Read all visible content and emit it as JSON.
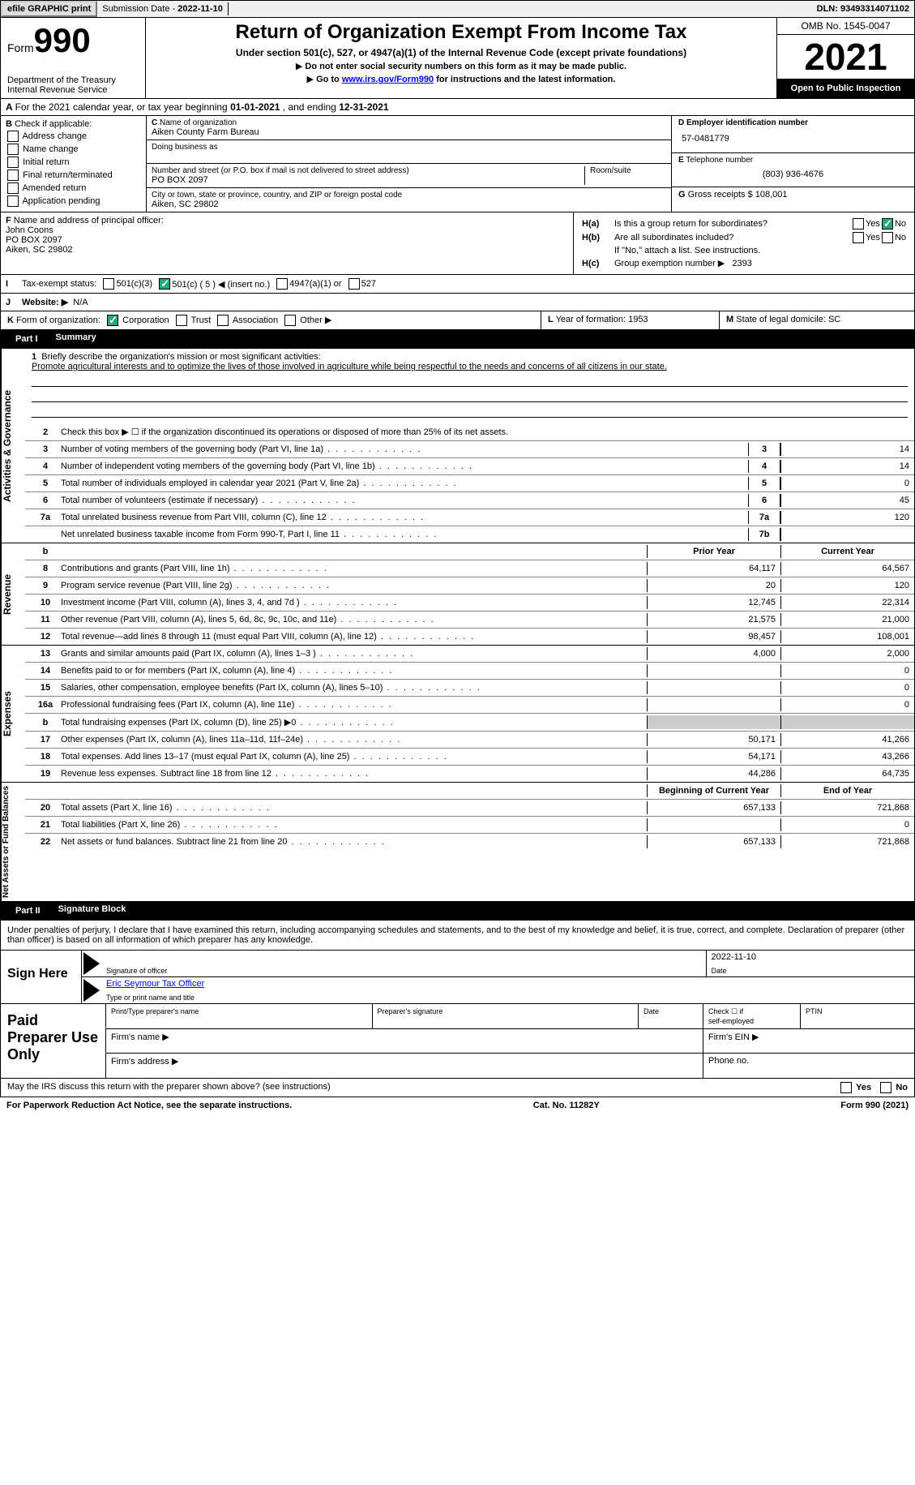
{
  "topbar": {
    "efile": "efile GRAPHIC print",
    "submission_label": "Submission Date - ",
    "submission_date": "2022-11-10",
    "dln_label": "DLN: ",
    "dln": "93493314071102"
  },
  "header": {
    "form_word": "Form",
    "form_num": "990",
    "dept": "Department of the Treasury\nInternal Revenue Service",
    "title": "Return of Organization Exempt From Income Tax",
    "subtitle": "Under section 501(c), 527, or 4947(a)(1) of the Internal Revenue Code (except private foundations)",
    "note1": "Do not enter social security numbers on this form as it may be made public.",
    "note2_a": "Go to ",
    "note2_link": "www.irs.gov/Form990",
    "note2_b": " for instructions and the latest information.",
    "omb": "OMB No. 1545-0047",
    "year": "2021",
    "inspect": "Open to Public Inspection"
  },
  "rowA": {
    "text_a": "For the 2021 calendar year, or tax year beginning ",
    "begin": "01-01-2021",
    "text_b": "   , and ending ",
    "end": "12-31-2021"
  },
  "B": {
    "hdr": "Check if applicable:",
    "opts": [
      "Address change",
      "Name change",
      "Initial return",
      "Final return/terminated",
      "Amended return",
      "Application pending"
    ]
  },
  "C": {
    "name_lbl": "Name of organization",
    "name": "Aiken County Farm Bureau",
    "dba_lbl": "Doing business as",
    "dba": "",
    "street_lbl": "Number and street (or P.O. box if mail is not delivered to street address)",
    "street": "PO BOX 2097",
    "suite_lbl": "Room/suite",
    "suite": "",
    "city_lbl": "City or town, state or province, country, and ZIP or foreign postal code",
    "city": "Aiken, SC  29802"
  },
  "D": {
    "ein_lbl": "Employer identification number",
    "ein": "57-0481779",
    "tel_lbl": "Telephone number",
    "tel": "(803) 936-4676",
    "gross_lbl": "Gross receipts $ ",
    "gross": "108,001"
  },
  "F": {
    "lbl": "Name and address of principal officer:",
    "name": "John Coons",
    "street": "PO BOX 2097",
    "city": "Aiken, SC  29802"
  },
  "H": {
    "a_lbl": "Is this a group return for subordinates?",
    "b_lbl": "Are all subordinates included?",
    "note": "If \"No,\" attach a list. See instructions.",
    "c_lbl": "Group exemption number ▶",
    "c_val": "2393",
    "yes": "Yes",
    "no": "No"
  },
  "I": {
    "lbl": "Tax-exempt status:",
    "opts": [
      "501(c)(3)",
      "501(c) ( 5 ) ◀ (insert no.)",
      "4947(a)(1) or",
      "527"
    ],
    "checked_idx": 1
  },
  "J": {
    "lbl": "Website: ▶",
    "val": "N/A"
  },
  "K": {
    "lbl": "Form of organization:",
    "opts": [
      "Corporation",
      "Trust",
      "Association",
      "Other ▶"
    ],
    "checked_idx": 0
  },
  "L": {
    "lbl": "Year of formation: ",
    "val": "1953"
  },
  "M": {
    "lbl": "State of legal domicile: ",
    "val": "SC"
  },
  "part1": {
    "num": "Part I",
    "title": "Summary"
  },
  "mission": {
    "q": "Briefly describe the organization's mission or most significant activities:",
    "text": "Promote agricultural interests and to optimize the lives of those involved in agriculture while being respectful to the needs and concerns of all citizens in our state."
  },
  "line2": "Check this box ▶ ☐ if the organization discontinued its operations or disposed of more than 25% of its net assets.",
  "group_lbls": {
    "ag": "Activities & Governance",
    "rev": "Revenue",
    "exp": "Expenses",
    "net": "Net Assets or Fund Balances"
  },
  "col_hdrs": {
    "prior": "Prior Year",
    "current": "Current Year",
    "begin": "Beginning of Current Year",
    "end": "End of Year"
  },
  "gov_lines": [
    {
      "n": "3",
      "t": "Number of voting members of the governing body (Part VI, line 1a)",
      "nb": "3",
      "v": "14"
    },
    {
      "n": "4",
      "t": "Number of independent voting members of the governing body (Part VI, line 1b)",
      "nb": "4",
      "v": "14"
    },
    {
      "n": "5",
      "t": "Total number of individuals employed in calendar year 2021 (Part V, line 2a)",
      "nb": "5",
      "v": "0"
    },
    {
      "n": "6",
      "t": "Total number of volunteers (estimate if necessary)",
      "nb": "6",
      "v": "45"
    },
    {
      "n": "7a",
      "t": "Total unrelated business revenue from Part VIII, column (C), line 12",
      "nb": "7a",
      "v": "120"
    },
    {
      "n": "",
      "t": "Net unrelated business taxable income from Form 990-T, Part I, line 11",
      "nb": "7b",
      "v": ""
    }
  ],
  "rev_lines": [
    {
      "n": "8",
      "t": "Contributions and grants (Part VIII, line 1h)",
      "p": "64,117",
      "c": "64,567"
    },
    {
      "n": "9",
      "t": "Program service revenue (Part VIII, line 2g)",
      "p": "20",
      "c": "120"
    },
    {
      "n": "10",
      "t": "Investment income (Part VIII, column (A), lines 3, 4, and 7d )",
      "p": "12,745",
      "c": "22,314"
    },
    {
      "n": "11",
      "t": "Other revenue (Part VIII, column (A), lines 5, 6d, 8c, 9c, 10c, and 11e)",
      "p": "21,575",
      "c": "21,000"
    },
    {
      "n": "12",
      "t": "Total revenue—add lines 8 through 11 (must equal Part VIII, column (A), line 12)",
      "p": "98,457",
      "c": "108,001"
    }
  ],
  "exp_lines": [
    {
      "n": "13",
      "t": "Grants and similar amounts paid (Part IX, column (A), lines 1–3 )",
      "p": "4,000",
      "c": "2,000"
    },
    {
      "n": "14",
      "t": "Benefits paid to or for members (Part IX, column (A), line 4)",
      "p": "",
      "c": "0"
    },
    {
      "n": "15",
      "t": "Salaries, other compensation, employee benefits (Part IX, column (A), lines 5–10)",
      "p": "",
      "c": "0"
    },
    {
      "n": "16a",
      "t": "Professional fundraising fees (Part IX, column (A), line 11e)",
      "p": "",
      "c": "0"
    },
    {
      "n": "b",
      "t": "Total fundraising expenses (Part IX, column (D), line 25) ▶0",
      "p": "shade",
      "c": "shade"
    },
    {
      "n": "17",
      "t": "Other expenses (Part IX, column (A), lines 11a–11d, 11f–24e)",
      "p": "50,171",
      "c": "41,266"
    },
    {
      "n": "18",
      "t": "Total expenses. Add lines 13–17 (must equal Part IX, column (A), line 25)",
      "p": "54,171",
      "c": "43,266"
    },
    {
      "n": "19",
      "t": "Revenue less expenses. Subtract line 18 from line 12",
      "p": "44,286",
      "c": "64,735"
    }
  ],
  "net_lines": [
    {
      "n": "20",
      "t": "Total assets (Part X, line 16)",
      "p": "657,133",
      "c": "721,868"
    },
    {
      "n": "21",
      "t": "Total liabilities (Part X, line 26)",
      "p": "",
      "c": "0"
    },
    {
      "n": "22",
      "t": "Net assets or fund balances. Subtract line 21 from line 20",
      "p": "657,133",
      "c": "721,868"
    }
  ],
  "part2": {
    "num": "Part II",
    "title": "Signature Block"
  },
  "penalty": "Under penalties of perjury, I declare that I have examined this return, including accompanying schedules and statements, and to the best of my knowledge and belief, it is true, correct, and complete. Declaration of preparer (other than officer) is based on all information of which preparer has any knowledge.",
  "sign": {
    "here": "Sign Here",
    "sig_lbl": "Signature of officer",
    "date_lbl": "Date",
    "date": "2022-11-10",
    "name": "Eric Seymour  Tax Officer",
    "name_lbl": "Type or print name and title"
  },
  "prep": {
    "title": "Paid Preparer Use Only",
    "c1": "Print/Type preparer's name",
    "c2": "Preparer's signature",
    "c3": "Date",
    "c4a": "Check ☐ if",
    "c4b": "self-employed",
    "c5": "PTIN",
    "firm_name": "Firm's name  ▶",
    "firm_ein": "Firm's EIN ▶",
    "firm_addr": "Firm's address ▶",
    "phone": "Phone no."
  },
  "discuss": {
    "q": "May the IRS discuss this return with the preparer shown above? (see instructions)",
    "yes": "Yes",
    "no": "No"
  },
  "footer": {
    "left": "For Paperwork Reduction Act Notice, see the separate instructions.",
    "mid": "Cat. No. 11282Y",
    "right": "Form 990 (2021)"
  }
}
